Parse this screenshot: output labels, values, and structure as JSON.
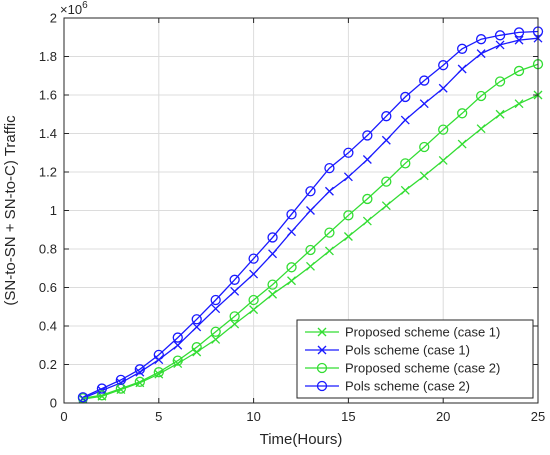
{
  "chart_data": {
    "type": "line",
    "title": "",
    "xlabel": "Time(Hours)",
    "ylabel": "(SN-to-SN + SN-to-C) Traffic",
    "exponent_label": "×10",
    "exponent_power": "6",
    "xlim": [
      0,
      25
    ],
    "ylim": [
      0,
      2
    ],
    "x_ticks": [
      0,
      5,
      10,
      15,
      20,
      25
    ],
    "y_ticks": [
      0,
      0.2,
      0.4,
      0.6,
      0.8,
      1,
      1.2,
      1.4,
      1.6,
      1.8,
      2
    ],
    "x_tick_labels": [
      "0",
      "5",
      "10",
      "15",
      "20",
      "25"
    ],
    "y_tick_labels": [
      "0",
      "0.2",
      "0.4",
      "0.6",
      "0.8",
      "1",
      "1.2",
      "1.4",
      "1.6",
      "1.8",
      "2"
    ],
    "y_scale_note": "values in units of 10^6",
    "grid": true,
    "legend_position": "bottom-right",
    "x": [
      1,
      2,
      3,
      4,
      5,
      6,
      7,
      8,
      9,
      10,
      11,
      12,
      13,
      14,
      15,
      16,
      17,
      18,
      19,
      20,
      21,
      22,
      23,
      24,
      25
    ],
    "series": [
      {
        "name": "Proposed scheme (case 1)",
        "color": "#33dd33",
        "marker": "x",
        "values": [
          0.02,
          0.035,
          0.07,
          0.105,
          0.15,
          0.205,
          0.265,
          0.33,
          0.41,
          0.485,
          0.565,
          0.635,
          0.71,
          0.79,
          0.865,
          0.945,
          1.025,
          1.105,
          1.18,
          1.26,
          1.345,
          1.425,
          1.5,
          1.555,
          1.6
        ]
      },
      {
        "name": "Pols scheme (case 1)",
        "color": "#1a1aff",
        "marker": "x",
        "values": [
          0.025,
          0.065,
          0.105,
          0.16,
          0.225,
          0.3,
          0.395,
          0.49,
          0.58,
          0.67,
          0.775,
          0.89,
          1.0,
          1.1,
          1.175,
          1.265,
          1.365,
          1.47,
          1.555,
          1.635,
          1.735,
          1.815,
          1.86,
          1.885,
          1.895
        ]
      },
      {
        "name": "Proposed scheme (case 2)",
        "color": "#33dd33",
        "marker": "o",
        "values": [
          0.025,
          0.04,
          0.075,
          0.11,
          0.16,
          0.22,
          0.29,
          0.37,
          0.45,
          0.535,
          0.615,
          0.705,
          0.795,
          0.885,
          0.975,
          1.06,
          1.15,
          1.245,
          1.33,
          1.42,
          1.505,
          1.595,
          1.67,
          1.725,
          1.76
        ]
      },
      {
        "name": "Pols scheme (case 2)",
        "color": "#1a1aff",
        "marker": "o",
        "values": [
          0.03,
          0.075,
          0.12,
          0.175,
          0.25,
          0.34,
          0.435,
          0.535,
          0.64,
          0.75,
          0.86,
          0.98,
          1.1,
          1.22,
          1.3,
          1.39,
          1.49,
          1.59,
          1.675,
          1.755,
          1.84,
          1.89,
          1.91,
          1.925,
          1.93
        ]
      }
    ]
  }
}
